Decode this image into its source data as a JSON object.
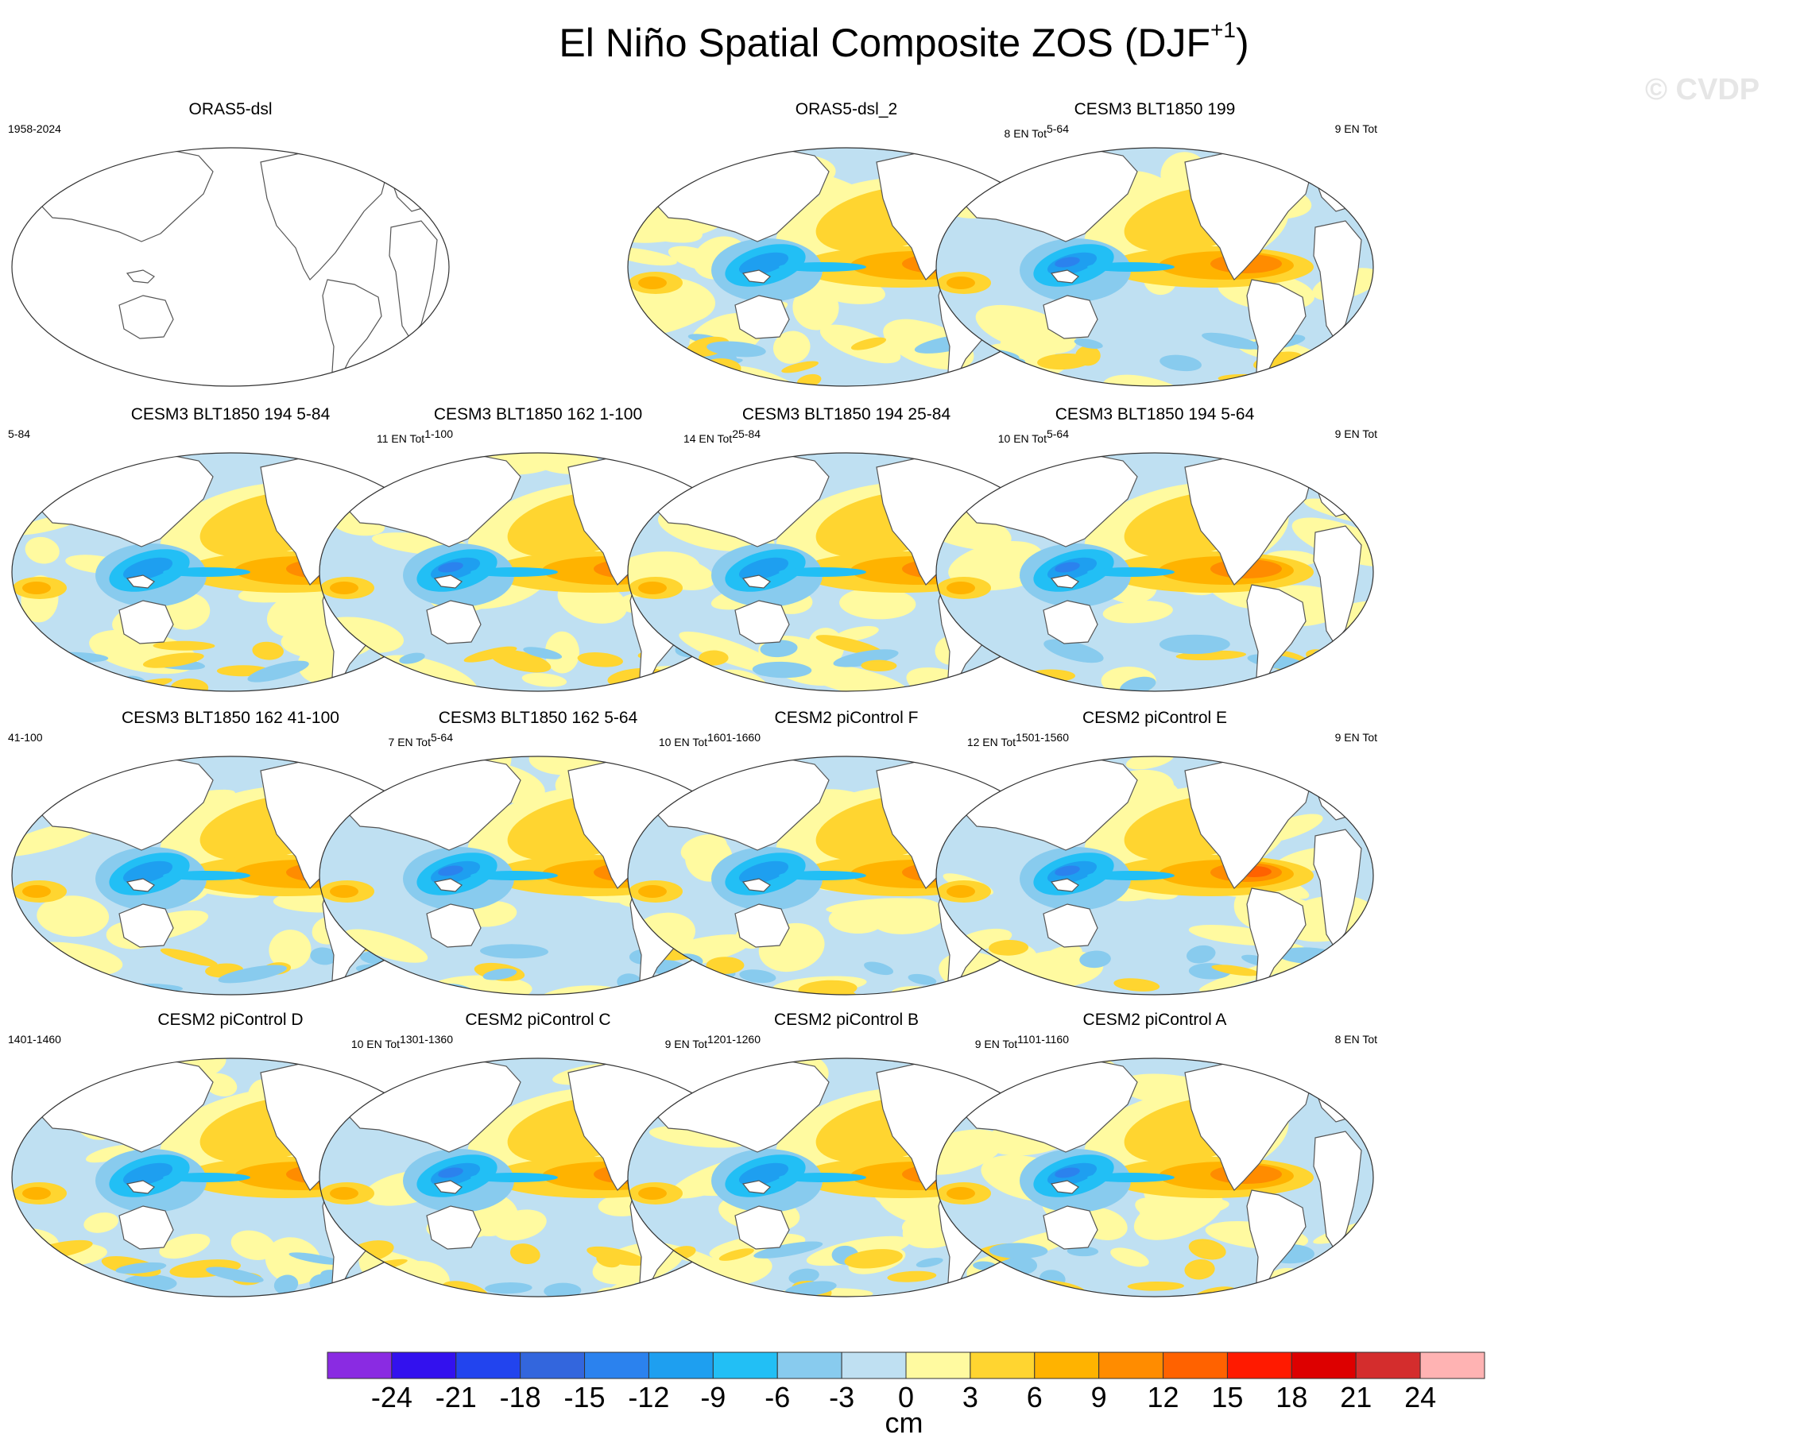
{
  "header": {
    "title_main": "El Niño Spatial Composite ZOS (DJF",
    "title_sup": "+1",
    "title_close": ")",
    "watermark": "© CVDP"
  },
  "panels": [
    {
      "title": "ORAS5-dsl",
      "left_label": "1958-2024",
      "right_prefix": "",
      "right_sup": "",
      "filled": false,
      "variant": 0
    },
    {
      "title": "ORAS5-dsl_2",
      "left_label": "",
      "right_prefix": "8 EN Tot",
      "right_sup": "5-64",
      "filled": true,
      "variant": 1
    },
    {
      "title": "CESM3 BLT1850 199",
      "left_label": "",
      "right_prefix": "9 EN Tot",
      "right_sup": "",
      "filled": true,
      "variant": 2
    },
    {
      "title": "CESM3 BLT1850 194 5-84",
      "left_label": "5-84",
      "right_prefix": "11 EN Tot",
      "right_sup": "1-100",
      "filled": true,
      "variant": 3
    },
    {
      "title": "CESM3 BLT1850 162 1-100",
      "left_label": "",
      "right_prefix": "14 EN Tot",
      "right_sup": "25-84",
      "filled": true,
      "variant": 4
    },
    {
      "title": "CESM3 BLT1850 194 25-84",
      "left_label": "",
      "right_prefix": "10 EN Tot",
      "right_sup": "5-64",
      "filled": true,
      "variant": 5
    },
    {
      "title": "CESM3 BLT1850 194 5-64",
      "left_label": "",
      "right_prefix": "9 EN Tot",
      "right_sup": "",
      "filled": true,
      "variant": 6
    },
    {
      "title": "CESM3 BLT1850 162 41-100",
      "left_label": "41-100",
      "right_prefix": "7 EN Tot",
      "right_sup": "5-64",
      "filled": true,
      "variant": 7
    },
    {
      "title": "CESM3 BLT1850 162 5-64",
      "left_label": "",
      "right_prefix": "10 EN Tot",
      "right_sup": "1601-1660",
      "filled": true,
      "variant": 8
    },
    {
      "title": "CESM2 piControl F",
      "left_label": "",
      "right_prefix": "12 EN Tot",
      "right_sup": "1501-1560",
      "filled": true,
      "variant": 9
    },
    {
      "title": "CESM2 piControl E",
      "left_label": "",
      "right_prefix": "9 EN Tot",
      "right_sup": "",
      "filled": true,
      "variant": 10
    },
    {
      "title": "CESM2 piControl D",
      "left_label": "1401-1460",
      "right_prefix": "10 EN Tot",
      "right_sup": "1301-1360",
      "filled": true,
      "variant": 11
    },
    {
      "title": "CESM2 piControl C",
      "left_label": "",
      "right_prefix": "9 EN Tot",
      "right_sup": "1201-1260",
      "filled": true,
      "variant": 12
    },
    {
      "title": "CESM2 piControl B",
      "left_label": "",
      "right_prefix": "9 EN Tot",
      "right_sup": "1101-1160",
      "filled": true,
      "variant": 13
    },
    {
      "title": "CESM2 piControl A",
      "left_label": "",
      "right_prefix": "8 EN Tot",
      "right_sup": "",
      "filled": true,
      "variant": 14
    }
  ],
  "colorbar": {
    "colors": [
      "#8a2be2",
      "#3311ee",
      "#2244ee",
      "#3366dd",
      "#2b82ee",
      "#1e9ff0",
      "#22bff5",
      "#88cbee",
      "#bfe0f2",
      "#fffaa0",
      "#ffd530",
      "#ffb300",
      "#ff8c00",
      "#ff6200",
      "#ff1a00",
      "#dd0000",
      "#d42d2d",
      "#ffb3b3"
    ],
    "ticks": [
      "-24",
      "-21",
      "-18",
      "-15",
      "-12",
      "-9",
      "-6",
      "-3",
      "0",
      "3",
      "6",
      "9",
      "12",
      "15",
      "18",
      "21",
      "24"
    ],
    "unit": "cm"
  }
}
